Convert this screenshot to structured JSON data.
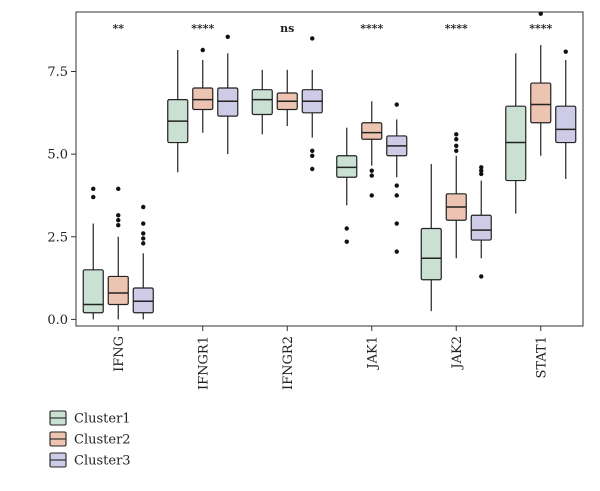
{
  "chart_data": {
    "type": "boxplot",
    "categories": [
      "IFNG",
      "IFNGR1",
      "IFNGR2",
      "JAK1",
      "JAK2",
      "STAT1"
    ],
    "significance": [
      "**",
      "****",
      "ns",
      "****",
      "****",
      "****"
    ],
    "ylim": [
      -0.2,
      9.3
    ],
    "yticks": [
      0.0,
      2.5,
      5.0,
      7.5
    ],
    "ytick_labels": [
      "0.0",
      "2.5",
      "5.0",
      "7.5"
    ],
    "grid": false,
    "legend_position": "bottom-left",
    "series": [
      {
        "name": "Cluster1",
        "color": "#c9e0d2",
        "boxes": [
          {
            "min": 0.0,
            "q1": 0.2,
            "median": 0.45,
            "q3": 1.5,
            "max": 2.9,
            "outliers": [
              3.7,
              3.95
            ]
          },
          {
            "min": 4.45,
            "q1": 5.35,
            "median": 6.0,
            "q3": 6.65,
            "max": 8.15,
            "outliers": []
          },
          {
            "min": 5.6,
            "q1": 6.2,
            "median": 6.65,
            "q3": 6.95,
            "max": 7.55,
            "outliers": []
          },
          {
            "min": 3.45,
            "q1": 4.3,
            "median": 4.6,
            "q3": 4.95,
            "max": 5.8,
            "outliers": [
              2.75,
              2.35
            ]
          },
          {
            "min": 0.25,
            "q1": 1.2,
            "median": 1.85,
            "q3": 2.75,
            "max": 4.7,
            "outliers": []
          },
          {
            "min": 3.2,
            "q1": 4.2,
            "median": 5.35,
            "q3": 6.45,
            "max": 8.05,
            "outliers": []
          }
        ]
      },
      {
        "name": "Cluster2",
        "color": "#edc4b2",
        "boxes": [
          {
            "min": 0.0,
            "q1": 0.45,
            "median": 0.8,
            "q3": 1.3,
            "max": 2.5,
            "outliers": [
              2.85,
              3.0,
              3.15,
              3.95
            ]
          },
          {
            "min": 5.65,
            "q1": 6.35,
            "median": 6.65,
            "q3": 7.0,
            "max": 7.85,
            "outliers": [
              8.15
            ]
          },
          {
            "min": 5.85,
            "q1": 6.35,
            "median": 6.6,
            "q3": 6.85,
            "max": 7.55,
            "outliers": []
          },
          {
            "min": 4.65,
            "q1": 5.45,
            "median": 5.65,
            "q3": 5.95,
            "max": 6.6,
            "outliers": [
              4.5,
              4.35,
              3.75
            ]
          },
          {
            "min": 1.85,
            "q1": 3.0,
            "median": 3.4,
            "q3": 3.8,
            "max": 4.95,
            "outliers": [
              5.1,
              5.25,
              5.45,
              5.6
            ]
          },
          {
            "min": 4.95,
            "q1": 5.95,
            "median": 6.5,
            "q3": 7.15,
            "max": 8.3,
            "outliers": [
              9.25
            ]
          }
        ]
      },
      {
        "name": "Cluster3",
        "color": "#cdcbe6",
        "boxes": [
          {
            "min": 0.0,
            "q1": 0.2,
            "median": 0.55,
            "q3": 0.95,
            "max": 2.0,
            "outliers": [
              2.3,
              2.45,
              2.6,
              2.9,
              3.4
            ]
          },
          {
            "min": 5.0,
            "q1": 6.15,
            "median": 6.6,
            "q3": 7.0,
            "max": 8.05,
            "outliers": [
              8.55
            ]
          },
          {
            "min": 5.5,
            "q1": 6.25,
            "median": 6.6,
            "q3": 6.95,
            "max": 7.55,
            "outliers": [
              8.5,
              5.1,
              4.95,
              4.55
            ]
          },
          {
            "min": 4.3,
            "q1": 4.95,
            "median": 5.25,
            "q3": 5.55,
            "max": 6.05,
            "outliers": [
              6.5,
              4.05,
              3.75,
              2.9,
              2.05
            ]
          },
          {
            "min": 1.85,
            "q1": 2.4,
            "median": 2.7,
            "q3": 3.15,
            "max": 4.2,
            "outliers": [
              4.4,
              4.5,
              4.6,
              1.3
            ]
          },
          {
            "min": 4.25,
            "q1": 5.35,
            "median": 5.75,
            "q3": 6.45,
            "max": 7.85,
            "outliers": [
              8.1
            ]
          }
        ]
      }
    ]
  }
}
